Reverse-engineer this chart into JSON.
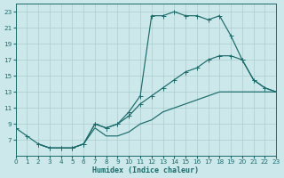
{
  "xlabel": "Humidex (Indice chaleur)",
  "bg_color": "#cce8ea",
  "grid_color": "#aacccc",
  "line_color": "#1a6b6b",
  "xlim": [
    0,
    23
  ],
  "ylim": [
    5,
    24
  ],
  "yticks": [
    7,
    9,
    11,
    13,
    15,
    17,
    19,
    21,
    23
  ],
  "xticks": [
    0,
    1,
    2,
    3,
    4,
    5,
    6,
    7,
    8,
    9,
    10,
    11,
    12,
    13,
    14,
    15,
    16,
    17,
    18,
    19,
    20,
    21,
    22,
    23
  ],
  "curve1_x": [
    0,
    1,
    2,
    3,
    4,
    5,
    6,
    7,
    8,
    9,
    10,
    11,
    12,
    13,
    14,
    15,
    16,
    17,
    18,
    19,
    20,
    21,
    22,
    23
  ],
  "curve1_y": [
    8.5,
    7.5,
    6.5,
    6.0,
    6.0,
    6.0,
    6.5,
    9.0,
    8.5,
    9.0,
    10.5,
    12.5,
    22.5,
    22.5,
    23.0,
    22.5,
    22.5,
    22.0,
    22.5,
    20.0,
    17.0,
    14.5,
    13.5,
    13.0
  ],
  "curve2_x": [
    2,
    3,
    4,
    5,
    6,
    7,
    8,
    9,
    10,
    11,
    12,
    13,
    14,
    15,
    16,
    17,
    18,
    19,
    20,
    21,
    22,
    23
  ],
  "curve2_y": [
    6.5,
    6.0,
    6.0,
    6.0,
    6.5,
    9.0,
    8.5,
    9.0,
    10.0,
    11.5,
    12.5,
    13.5,
    14.5,
    15.5,
    16.0,
    17.0,
    17.5,
    17.5,
    17.0,
    14.5,
    13.5,
    13.0
  ],
  "curve3_x": [
    2,
    3,
    4,
    5,
    6,
    7,
    8,
    9,
    10,
    11,
    12,
    13,
    14,
    15,
    16,
    17,
    18,
    19,
    20,
    21,
    22,
    23
  ],
  "curve3_y": [
    6.5,
    6.0,
    6.0,
    6.0,
    6.5,
    8.5,
    7.5,
    7.5,
    8.0,
    9.0,
    9.5,
    10.5,
    11.0,
    11.5,
    12.0,
    12.5,
    13.0,
    13.0,
    13.0,
    13.0,
    13.0,
    13.0
  ]
}
